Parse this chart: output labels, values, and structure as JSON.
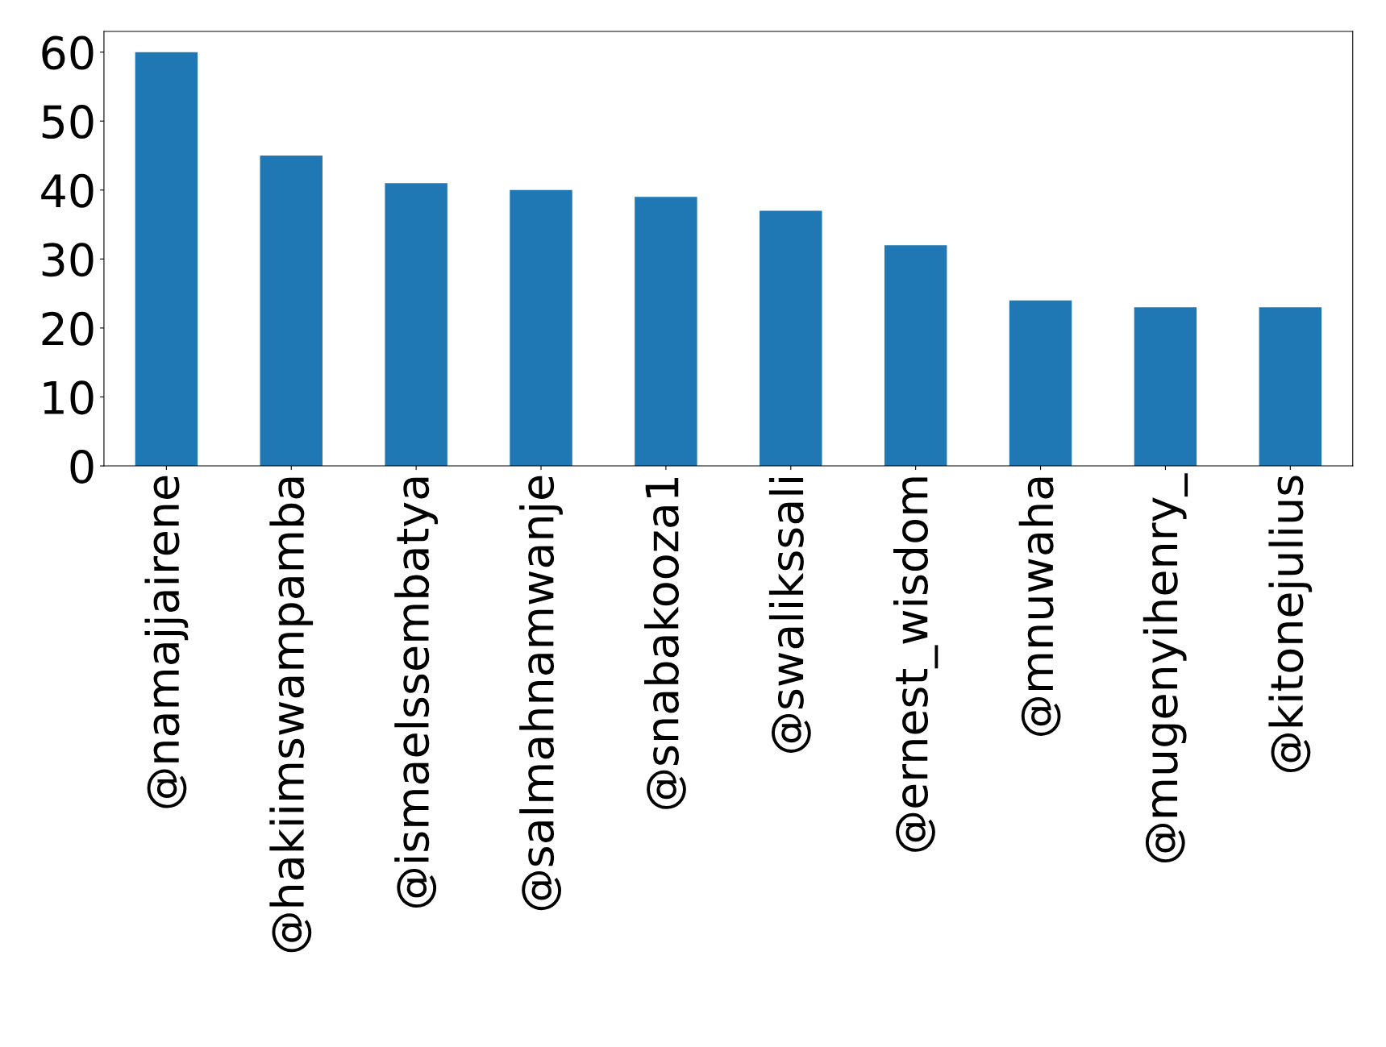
{
  "chart_data": {
    "type": "bar",
    "categories": [
      "@namajjairene",
      "@hakiimswampamba",
      "@ismaelssembatya",
      "@salmahnamwanje",
      "@snabakooza1",
      "@swalikssali",
      "@ernest_wisdom",
      "@mnuwaha",
      "@mugenyihenry_",
      "@kitonejulius"
    ],
    "values": [
      60,
      45,
      41,
      40,
      39,
      37,
      32,
      24,
      23,
      23
    ],
    "color": "#1f77b4",
    "ylim": [
      0,
      63
    ],
    "yticks": [
      0,
      10,
      20,
      30,
      40,
      50,
      60
    ],
    "grid": false,
    "legend": false
  }
}
